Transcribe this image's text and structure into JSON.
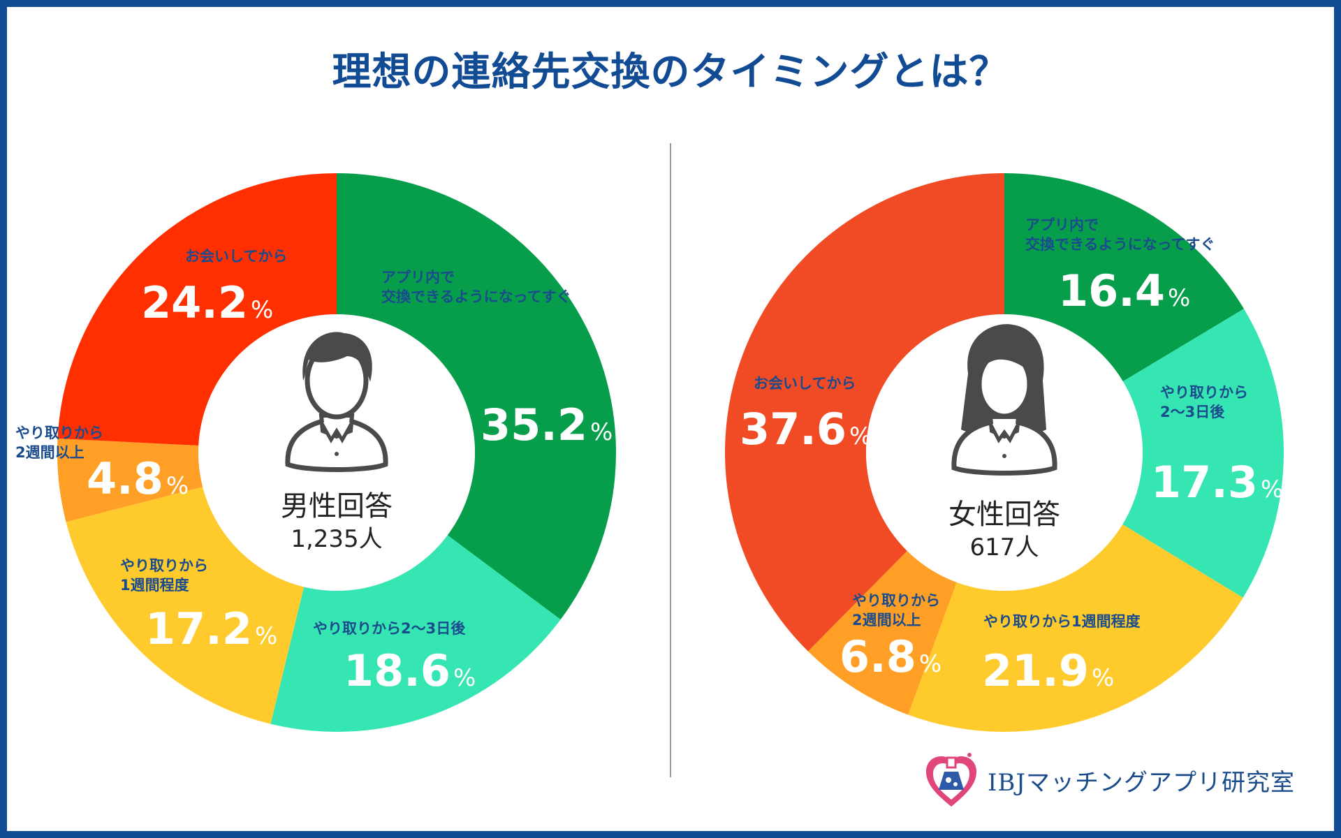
{
  "title": "理想の連絡先交換のタイミングとは？",
  "logo_text": "IBJマッチングアプリ研究室",
  "colors": {
    "app": "#069e4b",
    "days": "#36e6b2",
    "week": "#ffcb2c",
    "two_weeks": "#ff9f25",
    "meet_male": "#ff2f00",
    "meet_female": "#f04b25",
    "label": "#1a4b8c"
  },
  "chart_data": [
    {
      "type": "pie",
      "title": "男性回答",
      "respondents": "1,235人",
      "slices": [
        {
          "label": "アプリ内で\n交換できるようになってすぐ",
          "value": 35.2,
          "color_key": "app",
          "display": "35.2",
          "unit": "%"
        },
        {
          "label": "やり取りから2〜3日後",
          "value": 18.6,
          "color_key": "days",
          "display": "18.6",
          "unit": "%"
        },
        {
          "label": "やり取りから\n1週間程度",
          "value": 17.2,
          "color_key": "week",
          "display": "17.2",
          "unit": "%"
        },
        {
          "label": "やり取りから\n2週間以上",
          "value": 4.8,
          "color_key": "two_weeks",
          "display": "4.8",
          "unit": "%"
        },
        {
          "label": "お会いしてから",
          "value": 24.2,
          "color_key": "meet_male",
          "display": "24.2",
          "unit": "%"
        }
      ]
    },
    {
      "type": "pie",
      "title": "女性回答",
      "respondents": "617人",
      "slices": [
        {
          "label": "アプリ内で\n交換できるようになってすぐ",
          "value": 16.4,
          "color_key": "app",
          "display": "16.4",
          "unit": "%"
        },
        {
          "label": "やり取りから\n2〜3日後",
          "value": 17.3,
          "color_key": "days",
          "display": "17.3",
          "unit": "%"
        },
        {
          "label": "やり取りから1週間程度",
          "value": 21.9,
          "color_key": "week",
          "display": "21.9",
          "unit": "%"
        },
        {
          "label": "やり取りから\n2週間以上",
          "value": 6.8,
          "color_key": "two_weeks",
          "display": "6.8",
          "unit": "%"
        },
        {
          "label": "お会いしてから",
          "value": 37.6,
          "color_key": "meet_female",
          "display": "37.6",
          "unit": "%"
        }
      ]
    }
  ]
}
